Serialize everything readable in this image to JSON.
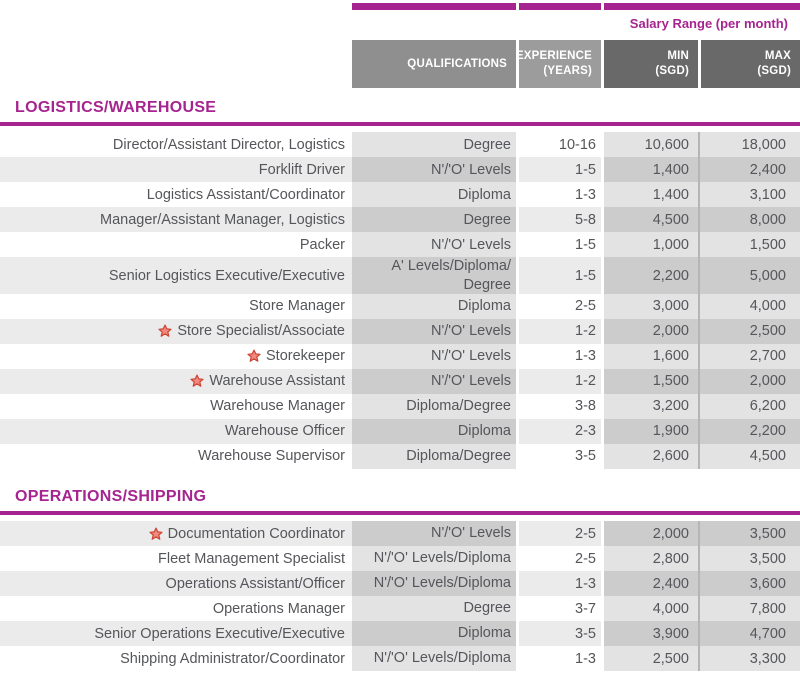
{
  "colors": {
    "accent": "#A6248F",
    "header-qual": "#8F8F8F",
    "header-exp": "#9C9C9C",
    "header-minmax": "#696969",
    "cell-light": "#E3E3E4",
    "stripe-light": "#EBEBEC",
    "stripe-dark": "#CCCCCD",
    "divider": "#B5B5B5",
    "star-fill": "#EE8A7E",
    "star-stroke": "#CE4433"
  },
  "header": {
    "salary_range_label": "Salary Range (per month)",
    "columns": [
      {
        "id": "qualifications",
        "label": "QUALIFICATIONS"
      },
      {
        "id": "experience",
        "label": "EXPERIENCE\n(YEARS)"
      },
      {
        "id": "min",
        "label": "MIN\n(SGD)"
      },
      {
        "id": "max",
        "label": "MAX\n(SGD)"
      }
    ]
  },
  "sections": [
    {
      "title": "LOGISTICS/WAREHOUSE",
      "first_row_striped": false,
      "rows": [
        {
          "title": "Director/Assistant Director, Logistics",
          "starred": false,
          "qualification": "Degree",
          "experience": "10-16",
          "min": "10,600",
          "max": "18,000"
        },
        {
          "title": "Forklift Driver",
          "starred": false,
          "qualification": "N'/'O' Levels",
          "experience": "1-5",
          "min": "1,400",
          "max": "2,400"
        },
        {
          "title": "Logistics Assistant/Coordinator",
          "starred": false,
          "qualification": "Diploma",
          "experience": "1-3",
          "min": "1,400",
          "max": "3,100"
        },
        {
          "title": "Manager/Assistant Manager, Logistics",
          "starred": false,
          "qualification": "Degree",
          "experience": "5-8",
          "min": "4,500",
          "max": "8,000"
        },
        {
          "title": "Packer",
          "starred": false,
          "qualification": "N'/'O' Levels",
          "experience": "1-5",
          "min": "1,000",
          "max": "1,500"
        },
        {
          "title": "Senior Logistics Executive/Executive",
          "starred": false,
          "qualification": "A' Levels/Diploma/\nDegree",
          "experience": "1-5",
          "min": "2,200",
          "max": "5,000"
        },
        {
          "title": "Store Manager",
          "starred": false,
          "qualification": "Diploma",
          "experience": "2-5",
          "min": "3,000",
          "max": "4,000"
        },
        {
          "title": "Store Specialist/Associate",
          "starred": true,
          "qualification": "N'/'O' Levels",
          "experience": "1-2",
          "min": "2,000",
          "max": "2,500"
        },
        {
          "title": "Storekeeper",
          "starred": true,
          "qualification": "N'/'O' Levels",
          "experience": "1-3",
          "min": "1,600",
          "max": "2,700"
        },
        {
          "title": "Warehouse Assistant",
          "starred": true,
          "qualification": "N'/'O' Levels",
          "experience": "1-2",
          "min": "1,500",
          "max": "2,000"
        },
        {
          "title": "Warehouse Manager",
          "starred": false,
          "qualification": "Diploma/Degree",
          "experience": "3-8",
          "min": "3,200",
          "max": "6,200"
        },
        {
          "title": "Warehouse Officer",
          "starred": false,
          "qualification": "Diploma",
          "experience": "2-3",
          "min": "1,900",
          "max": "2,200"
        },
        {
          "title": "Warehouse Supervisor",
          "starred": false,
          "qualification": "Diploma/Degree",
          "experience": "3-5",
          "min": "2,600",
          "max": "4,500"
        }
      ]
    },
    {
      "title": "OPERATIONS/SHIPPING",
      "first_row_striped": true,
      "rows": [
        {
          "title": "Documentation Coordinator",
          "starred": true,
          "qualification": "N'/'O' Levels",
          "experience": "2-5",
          "min": "2,000",
          "max": "3,500"
        },
        {
          "title": "Fleet Management Specialist",
          "starred": false,
          "qualification": "N'/'O' Levels/Diploma",
          "experience": "2-5",
          "min": "2,800",
          "max": "3,500"
        },
        {
          "title": "Operations Assistant/Officer",
          "starred": false,
          "qualification": "N'/'O' Levels/Diploma",
          "experience": "1-3",
          "min": "2,400",
          "max": "3,600"
        },
        {
          "title": "Operations Manager",
          "starred": false,
          "qualification": "Degree",
          "experience": "3-7",
          "min": "4,000",
          "max": "7,800"
        },
        {
          "title": "Senior Operations Executive/Executive",
          "starred": false,
          "qualification": "Diploma",
          "experience": "3-5",
          "min": "3,900",
          "max": "4,700"
        },
        {
          "title": "Shipping Administrator/Coordinator",
          "starred": false,
          "qualification": "N'/'O' Levels/Diploma",
          "experience": "1-3",
          "min": "2,500",
          "max": "3,300"
        }
      ]
    }
  ]
}
